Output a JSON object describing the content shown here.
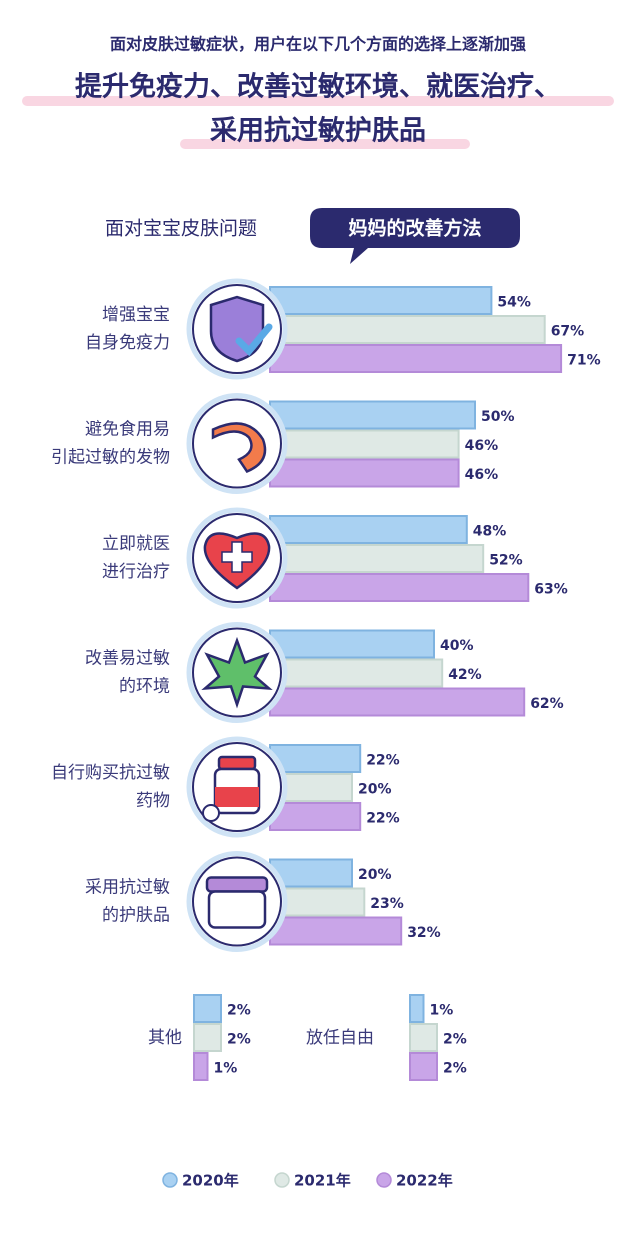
{
  "subtitle": "面对皮肤过敏症状，用户在以下几个方面的选择上逐渐加强",
  "title_lines": [
    "提升免疫力、改善过敏环境、就医治疗、",
    "采用抗过敏护肤品"
  ],
  "heading": "面对宝宝皮肤问题",
  "badge": "妈妈的改善方法",
  "chart_data": [
    {
      "type": "bar",
      "orientation": "horizontal",
      "xlim": [
        0,
        100
      ],
      "categories": [
        [
          "增强宝宝",
          "自身免疫力"
        ],
        [
          "避免食用易",
          "引起过敏的发物"
        ],
        [
          "立即就医",
          "进行治疗"
        ],
        [
          "改善易过敏",
          "的环境"
        ],
        [
          "自行购买抗过敏",
          "药物"
        ],
        [
          "采用抗过敏",
          "的护肤品"
        ]
      ],
      "series": [
        {
          "name": "2020年",
          "color": "#a9d1f2",
          "values": [
            54,
            50,
            48,
            40,
            22,
            20
          ],
          "value_labels": [
            "54%",
            "50%",
            "48%",
            "40%",
            "22%",
            "20%"
          ]
        },
        {
          "name": "2021年",
          "color": "#dfe9e5",
          "values": [
            67,
            46,
            52,
            42,
            20,
            23
          ],
          "value_labels": [
            "67%",
            "46%",
            "52%",
            "42%",
            "20%",
            "23%"
          ]
        },
        {
          "name": "2022年",
          "color": "#c9a5e8",
          "values": [
            71,
            46,
            63,
            62,
            22,
            32
          ],
          "value_labels": [
            "71%",
            "46%",
            "63%",
            "62%",
            "22%",
            "32%"
          ]
        }
      ]
    },
    {
      "type": "bar",
      "orientation": "horizontal",
      "xlim": [
        0,
        10
      ],
      "categories": [
        "其他",
        "放任自由"
      ],
      "series": [
        {
          "name": "2020年",
          "color": "#a9d1f2",
          "values": [
            2,
            1
          ],
          "value_labels": [
            "2%",
            "1%"
          ]
        },
        {
          "name": "2021年",
          "color": "#dfe9e5",
          "values": [
            2,
            2
          ],
          "value_labels": [
            "2%",
            "2%"
          ]
        },
        {
          "name": "2022年",
          "color": "#c9a5e8",
          "values": [
            1,
            2
          ],
          "value_labels": [
            "1%",
            "2%"
          ]
        }
      ]
    }
  ]
}
